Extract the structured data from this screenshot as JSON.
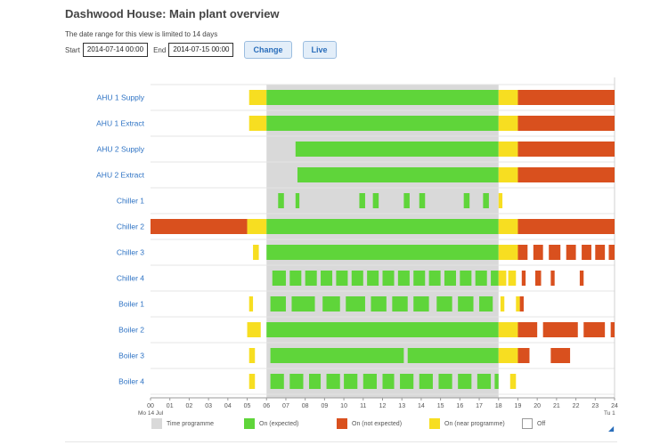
{
  "page": {
    "title": "Dashwood House: Main plant overview",
    "range_note": "The date range for this view is limited to 14 days",
    "start_label": "Start",
    "start_value": "2014-07-14 00:00",
    "end_label": "End",
    "end_value": "2014-07-15 00:00",
    "change_button": "Change",
    "live_button": "Live"
  },
  "colors": {
    "time_programme": "#d9d9d9",
    "on_expected": "#5fd53a",
    "on_not_expected": "#d9501e",
    "on_near_programme": "#f7de21",
    "off": "#ffffff",
    "label": "#2e73c4"
  },
  "chart_data": {
    "type": "timeline",
    "x_ticks": [
      "00",
      "01",
      "02",
      "03",
      "04",
      "05",
      "06",
      "07",
      "08",
      "09",
      "10",
      "11",
      "12",
      "13",
      "14",
      "15",
      "16",
      "17",
      "18",
      "19",
      "20",
      "21",
      "22",
      "23",
      "24"
    ],
    "x_start_label": "Mo 14 Jul",
    "x_end_label": "Tu 1",
    "time_programme": [
      6,
      18
    ],
    "legend": [
      {
        "key": "time_programme",
        "label": "Time programme"
      },
      {
        "key": "on_expected",
        "label": "On (expected)"
      },
      {
        "key": "on_not_expected",
        "label": "On (not expected)"
      },
      {
        "key": "on_near_programme",
        "label": "On (near programme)"
      },
      {
        "key": "off",
        "label": "Off"
      }
    ],
    "rows": [
      {
        "name": "AHU 1 Supply",
        "segments": [
          [
            5.1,
            6,
            "y"
          ],
          [
            6,
            18,
            "g"
          ],
          [
            18,
            19,
            "y"
          ],
          [
            19,
            24,
            "r"
          ]
        ]
      },
      {
        "name": "AHU 1 Extract",
        "segments": [
          [
            5.1,
            6,
            "y"
          ],
          [
            6,
            18,
            "g"
          ],
          [
            18,
            19,
            "y"
          ],
          [
            19,
            24,
            "r"
          ]
        ]
      },
      {
        "name": "AHU 2 Supply",
        "segments": [
          [
            7.5,
            18,
            "g"
          ],
          [
            18,
            19,
            "y"
          ],
          [
            19,
            24,
            "r"
          ]
        ]
      },
      {
        "name": "AHU 2 Extract",
        "segments": [
          [
            7.6,
            18,
            "g"
          ],
          [
            18,
            19,
            "y"
          ],
          [
            19,
            24,
            "r"
          ]
        ]
      },
      {
        "name": "Chiller 1",
        "segments": [
          [
            6.6,
            6.9,
            "g"
          ],
          [
            7.5,
            7.7,
            "g"
          ],
          [
            10.8,
            11.1,
            "g"
          ],
          [
            11.5,
            11.8,
            "g"
          ],
          [
            13.1,
            13.4,
            "g"
          ],
          [
            13.9,
            14.2,
            "g"
          ],
          [
            16.2,
            16.5,
            "g"
          ],
          [
            17.2,
            17.5,
            "g"
          ],
          [
            18,
            18.2,
            "y"
          ]
        ]
      },
      {
        "name": "Chiller 2",
        "segments": [
          [
            0,
            5,
            "r"
          ],
          [
            5,
            6,
            "y"
          ],
          [
            6,
            18,
            "g"
          ],
          [
            18,
            19,
            "y"
          ],
          [
            19,
            24,
            "r"
          ]
        ]
      },
      {
        "name": "Chiller 3",
        "segments": [
          [
            5.3,
            5.6,
            "y"
          ],
          [
            6,
            18,
            "g"
          ],
          [
            18,
            19,
            "y"
          ],
          [
            19,
            19.5,
            "r"
          ],
          [
            19.8,
            20.3,
            "r"
          ],
          [
            20.6,
            21.2,
            "r"
          ],
          [
            21.5,
            22,
            "r"
          ],
          [
            22.3,
            22.8,
            "r"
          ],
          [
            23,
            23.5,
            "r"
          ],
          [
            23.7,
            24,
            "r"
          ]
        ]
      },
      {
        "name": "Chiller 4",
        "segments": [
          [
            6.3,
            7,
            "g"
          ],
          [
            7.2,
            7.8,
            "g"
          ],
          [
            8,
            8.6,
            "g"
          ],
          [
            8.8,
            9.4,
            "g"
          ],
          [
            9.6,
            10.2,
            "g"
          ],
          [
            10.4,
            11,
            "g"
          ],
          [
            11.2,
            11.8,
            "g"
          ],
          [
            12,
            12.6,
            "g"
          ],
          [
            12.8,
            13.4,
            "g"
          ],
          [
            13.6,
            14.2,
            "g"
          ],
          [
            14.4,
            15,
            "g"
          ],
          [
            15.2,
            15.8,
            "g"
          ],
          [
            16,
            16.6,
            "g"
          ],
          [
            16.8,
            17.4,
            "g"
          ],
          [
            17.6,
            18,
            "g"
          ],
          [
            18,
            18.4,
            "y"
          ],
          [
            18.5,
            18.9,
            "y"
          ],
          [
            19.2,
            19.4,
            "r"
          ],
          [
            19.9,
            20.2,
            "r"
          ],
          [
            20.7,
            20.9,
            "r"
          ],
          [
            22.2,
            22.4,
            "r"
          ]
        ]
      },
      {
        "name": "Boiler 1",
        "segments": [
          [
            5.1,
            5.3,
            "y"
          ],
          [
            6.2,
            7,
            "g"
          ],
          [
            7.3,
            8.5,
            "g"
          ],
          [
            8.9,
            9.8,
            "g"
          ],
          [
            10.1,
            11.1,
            "g"
          ],
          [
            11.4,
            12.2,
            "g"
          ],
          [
            12.5,
            13.3,
            "g"
          ],
          [
            13.6,
            14.4,
            "g"
          ],
          [
            14.8,
            15.6,
            "g"
          ],
          [
            15.9,
            16.7,
            "g"
          ],
          [
            17,
            17.7,
            "g"
          ],
          [
            18.1,
            18.3,
            "y"
          ],
          [
            18.9,
            19.1,
            "y"
          ],
          [
            19.1,
            19.3,
            "r"
          ]
        ]
      },
      {
        "name": "Boiler 2",
        "segments": [
          [
            5,
            5.7,
            "y"
          ],
          [
            6,
            18,
            "g"
          ],
          [
            18,
            19,
            "y"
          ],
          [
            19,
            20,
            "r"
          ],
          [
            20.3,
            22.1,
            "r"
          ],
          [
            22.4,
            23.5,
            "r"
          ],
          [
            23.8,
            24,
            "r"
          ]
        ]
      },
      {
        "name": "Boiler 3",
        "segments": [
          [
            5.1,
            5.4,
            "y"
          ],
          [
            6.2,
            13.1,
            "g"
          ],
          [
            13.3,
            18,
            "g"
          ],
          [
            18,
            19,
            "y"
          ],
          [
            19,
            19.6,
            "r"
          ],
          [
            20.7,
            21.7,
            "r"
          ]
        ]
      },
      {
        "name": "Boiler 4",
        "segments": [
          [
            5.1,
            5.4,
            "y"
          ],
          [
            6.2,
            6.9,
            "g"
          ],
          [
            7.2,
            7.9,
            "g"
          ],
          [
            8.2,
            8.8,
            "g"
          ],
          [
            9.1,
            9.8,
            "g"
          ],
          [
            10,
            10.7,
            "g"
          ],
          [
            11,
            11.7,
            "g"
          ],
          [
            12,
            12.6,
            "g"
          ],
          [
            12.9,
            13.6,
            "g"
          ],
          [
            13.9,
            14.6,
            "g"
          ],
          [
            14.9,
            15.6,
            "g"
          ],
          [
            15.9,
            16.6,
            "g"
          ],
          [
            16.9,
            17.6,
            "g"
          ],
          [
            17.8,
            18,
            "g"
          ],
          [
            18.6,
            18.9,
            "y"
          ]
        ]
      }
    ]
  }
}
